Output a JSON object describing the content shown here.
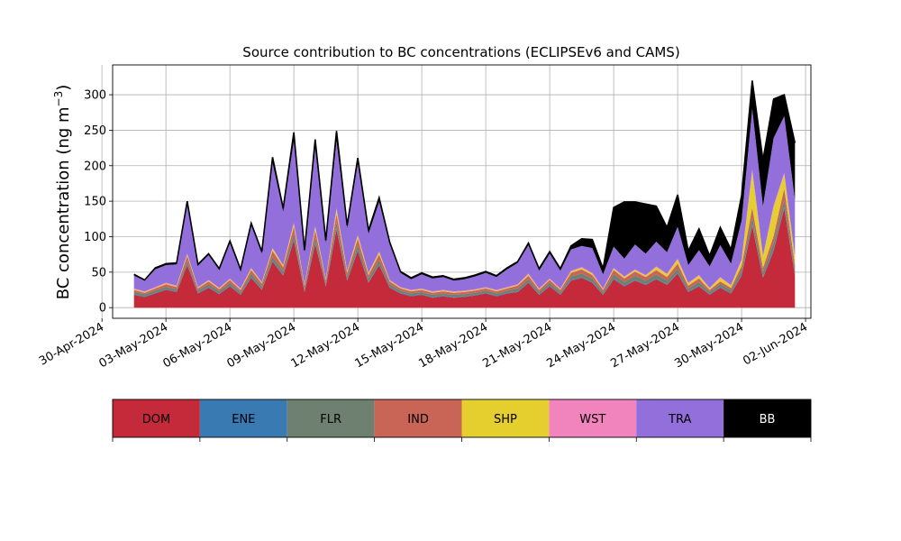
{
  "chart_data": {
    "type": "area",
    "stacked": true,
    "title": "Source contribution to BC concentrations (ECLIPSEv6 and CAMS)",
    "ylabel": "BC concentration (ng m",
    "ylabel_superscript": "−3",
    "ylabel_suffix": ")",
    "ylim": [
      -15,
      342
    ],
    "yticks": [
      0,
      50,
      100,
      150,
      200,
      250,
      300
    ],
    "xlim": [
      "2024-04-30T12:00",
      "2024-06-02T06:00"
    ],
    "xtick_dates": [
      "2024-04-30",
      "2024-05-03",
      "2024-05-06",
      "2024-05-09",
      "2024-05-12",
      "2024-05-15",
      "2024-05-18",
      "2024-05-21",
      "2024-05-24",
      "2024-05-27",
      "2024-05-30",
      "2024-06-02"
    ],
    "xtick_labels": [
      "30-Apr-2024",
      "03-May-2024",
      "06-May-2024",
      "09-May-2024",
      "12-May-2024",
      "15-May-2024",
      "18-May-2024",
      "21-May-2024",
      "24-May-2024",
      "27-May-2024",
      "30-May-2024",
      "02-Jun-2024"
    ],
    "grid": true,
    "legend_placement": "below",
    "sources": [
      {
        "name": "DOM",
        "color": "#c52a3a",
        "text_color": "#000000"
      },
      {
        "name": "ENE",
        "color": "#3a7ab3",
        "text_color": "#000000"
      },
      {
        "name": "FLR",
        "color": "#6e8070",
        "text_color": "#000000"
      },
      {
        "name": "IND",
        "color": "#c96557",
        "text_color": "#000000"
      },
      {
        "name": "SHP",
        "color": "#e5cf2f",
        "text_color": "#000000"
      },
      {
        "name": "WST",
        "color": "#f184bd",
        "text_color": "#000000"
      },
      {
        "name": "TRA",
        "color": "#936fdb",
        "text_color": "#000000"
      },
      {
        "name": "BB",
        "color": "#000000",
        "text_color": "#ffffff"
      }
    ],
    "dates": [
      "2024-05-01T12:00",
      "2024-05-02T00:00",
      "2024-05-02T12:00",
      "2024-05-03T00:00",
      "2024-05-03T12:00",
      "2024-05-04T00:00",
      "2024-05-04T12:00",
      "2024-05-05T00:00",
      "2024-05-05T12:00",
      "2024-05-06T00:00",
      "2024-05-06T12:00",
      "2024-05-07T00:00",
      "2024-05-07T12:00",
      "2024-05-08T00:00",
      "2024-05-08T12:00",
      "2024-05-09T00:00",
      "2024-05-09T12:00",
      "2024-05-10T00:00",
      "2024-05-10T12:00",
      "2024-05-11T00:00",
      "2024-05-11T12:00",
      "2024-05-12T00:00",
      "2024-05-12T12:00",
      "2024-05-13T00:00",
      "2024-05-13T12:00",
      "2024-05-14T00:00",
      "2024-05-14T12:00",
      "2024-05-15T00:00",
      "2024-05-15T12:00",
      "2024-05-16T00:00",
      "2024-05-16T12:00",
      "2024-05-17T00:00",
      "2024-05-17T12:00",
      "2024-05-18T00:00",
      "2024-05-18T12:00",
      "2024-05-19T00:00",
      "2024-05-19T12:00",
      "2024-05-20T00:00",
      "2024-05-20T12:00",
      "2024-05-21T00:00",
      "2024-05-21T12:00",
      "2024-05-22T00:00",
      "2024-05-22T12:00",
      "2024-05-23T00:00",
      "2024-05-23T12:00",
      "2024-05-24T00:00",
      "2024-05-24T12:00",
      "2024-05-25T00:00",
      "2024-05-25T12:00",
      "2024-05-26T00:00",
      "2024-05-26T12:00",
      "2024-05-27T00:00",
      "2024-05-27T12:00",
      "2024-05-28T00:00",
      "2024-05-28T12:00",
      "2024-05-29T00:00",
      "2024-05-29T12:00",
      "2024-05-30T00:00",
      "2024-05-30T12:00",
      "2024-05-31T00:00",
      "2024-05-31T12:00",
      "2024-06-01T00:00",
      "2024-06-01T12:00"
    ],
    "series": [
      {
        "name": "DOM",
        "values": [
          18,
          15,
          20,
          25,
          22,
          60,
          20,
          28,
          19,
          30,
          18,
          42,
          25,
          65,
          45,
          95,
          22,
          90,
          30,
          110,
          38,
          80,
          35,
          60,
          28,
          20,
          16,
          18,
          14,
          16,
          14,
          15,
          17,
          20,
          16,
          20,
          22,
          35,
          18,
          30,
          18,
          38,
          42,
          35,
          18,
          40,
          30,
          38,
          32,
          40,
          32,
          48,
          22,
          30,
          18,
          28,
          20,
          45,
          115,
          42,
          80,
          140,
          45
        ]
      },
      {
        "name": "ENE",
        "values": [
          1,
          1,
          1,
          1,
          1,
          1,
          1,
          1,
          1,
          1,
          1,
          1,
          1,
          1,
          1,
          2,
          1,
          2,
          1,
          2,
          1,
          2,
          1,
          1,
          1,
          1,
          1,
          1,
          1,
          1,
          1,
          1,
          1,
          1,
          1,
          1,
          1,
          1,
          1,
          1,
          1,
          1,
          1,
          1,
          1,
          1,
          1,
          1,
          1,
          1,
          1,
          1,
          1,
          1,
          1,
          1,
          1,
          1,
          2,
          1,
          2,
          2,
          1
        ]
      },
      {
        "name": "FLR",
        "values": [
          3,
          3,
          3,
          3,
          3,
          5,
          3,
          4,
          3,
          4,
          3,
          5,
          4,
          6,
          5,
          7,
          4,
          7,
          4,
          8,
          5,
          6,
          5,
          6,
          4,
          3,
          3,
          3,
          3,
          3,
          3,
          3,
          3,
          3,
          3,
          3,
          4,
          4,
          3,
          4,
          3,
          5,
          5,
          5,
          3,
          6,
          5,
          6,
          5,
          6,
          5,
          6,
          4,
          5,
          3,
          4,
          4,
          7,
          10,
          7,
          9,
          10,
          7
        ]
      },
      {
        "name": "IND",
        "values": [
          3,
          2,
          3,
          4,
          3,
          7,
          3,
          4,
          3,
          4,
          3,
          5,
          4,
          8,
          6,
          10,
          4,
          10,
          4,
          12,
          5,
          9,
          5,
          8,
          4,
          3,
          3,
          3,
          3,
          3,
          3,
          3,
          3,
          3,
          3,
          3,
          4,
          5,
          3,
          4,
          3,
          5,
          6,
          5,
          3,
          6,
          5,
          6,
          5,
          6,
          5,
          7,
          4,
          5,
          3,
          4,
          3,
          6,
          14,
          6,
          10,
          16,
          7
        ]
      },
      {
        "name": "SHP",
        "values": [
          1,
          1,
          1,
          1,
          1,
          2,
          1,
          1,
          1,
          1,
          1,
          2,
          1,
          3,
          2,
          4,
          1,
          4,
          1,
          6,
          2,
          4,
          2,
          3,
          1,
          1,
          1,
          1,
          1,
          1,
          1,
          1,
          1,
          1,
          1,
          1,
          1,
          2,
          1,
          1,
          1,
          2,
          2,
          2,
          1,
          2,
          2,
          2,
          2,
          4,
          4,
          6,
          3,
          4,
          2,
          5,
          3,
          8,
          50,
          15,
          40,
          20,
          10
        ]
      },
      {
        "name": "WST",
        "values": [
          1,
          1,
          1,
          1,
          1,
          1,
          1,
          1,
          1,
          1,
          1,
          1,
          1,
          1,
          1,
          2,
          1,
          2,
          1,
          2,
          1,
          2,
          1,
          1,
          1,
          1,
          1,
          1,
          1,
          1,
          1,
          1,
          1,
          1,
          1,
          1,
          1,
          1,
          1,
          1,
          1,
          1,
          1,
          1,
          1,
          1,
          1,
          1,
          1,
          1,
          1,
          1,
          1,
          1,
          1,
          1,
          1,
          1,
          4,
          2,
          3,
          2,
          2
        ]
      },
      {
        "name": "TRA",
        "values": [
          18,
          15,
          25,
          25,
          30,
          70,
          30,
          35,
          25,
          50,
          25,
          60,
          40,
          120,
          75,
          115,
          45,
          110,
          50,
          95,
          60,
          100,
          55,
          70,
          50,
          20,
          15,
          20,
          18,
          18,
          15,
          16,
          18,
          20,
          18,
          25,
          30,
          40,
          25,
          35,
          25,
          30,
          30,
          35,
          20,
          30,
          25,
          35,
          30,
          35,
          30,
          45,
          25,
          35,
          30,
          45,
          30,
          55,
          85,
          70,
          95,
          80,
          80
        ]
      },
      {
        "name": "BB",
        "values": [
          2,
          1,
          2,
          2,
          2,
          4,
          2,
          2,
          2,
          3,
          2,
          3,
          3,
          8,
          5,
          12,
          3,
          12,
          4,
          14,
          4,
          8,
          5,
          6,
          3,
          2,
          2,
          2,
          2,
          2,
          2,
          2,
          2,
          2,
          2,
          2,
          2,
          3,
          3,
          3,
          3,
          5,
          10,
          12,
          8,
          55,
          80,
          60,
          70,
          50,
          35,
          45,
          20,
          30,
          15,
          25,
          20,
          35,
          40,
          65,
          55,
          30,
          80
        ]
      }
    ]
  }
}
